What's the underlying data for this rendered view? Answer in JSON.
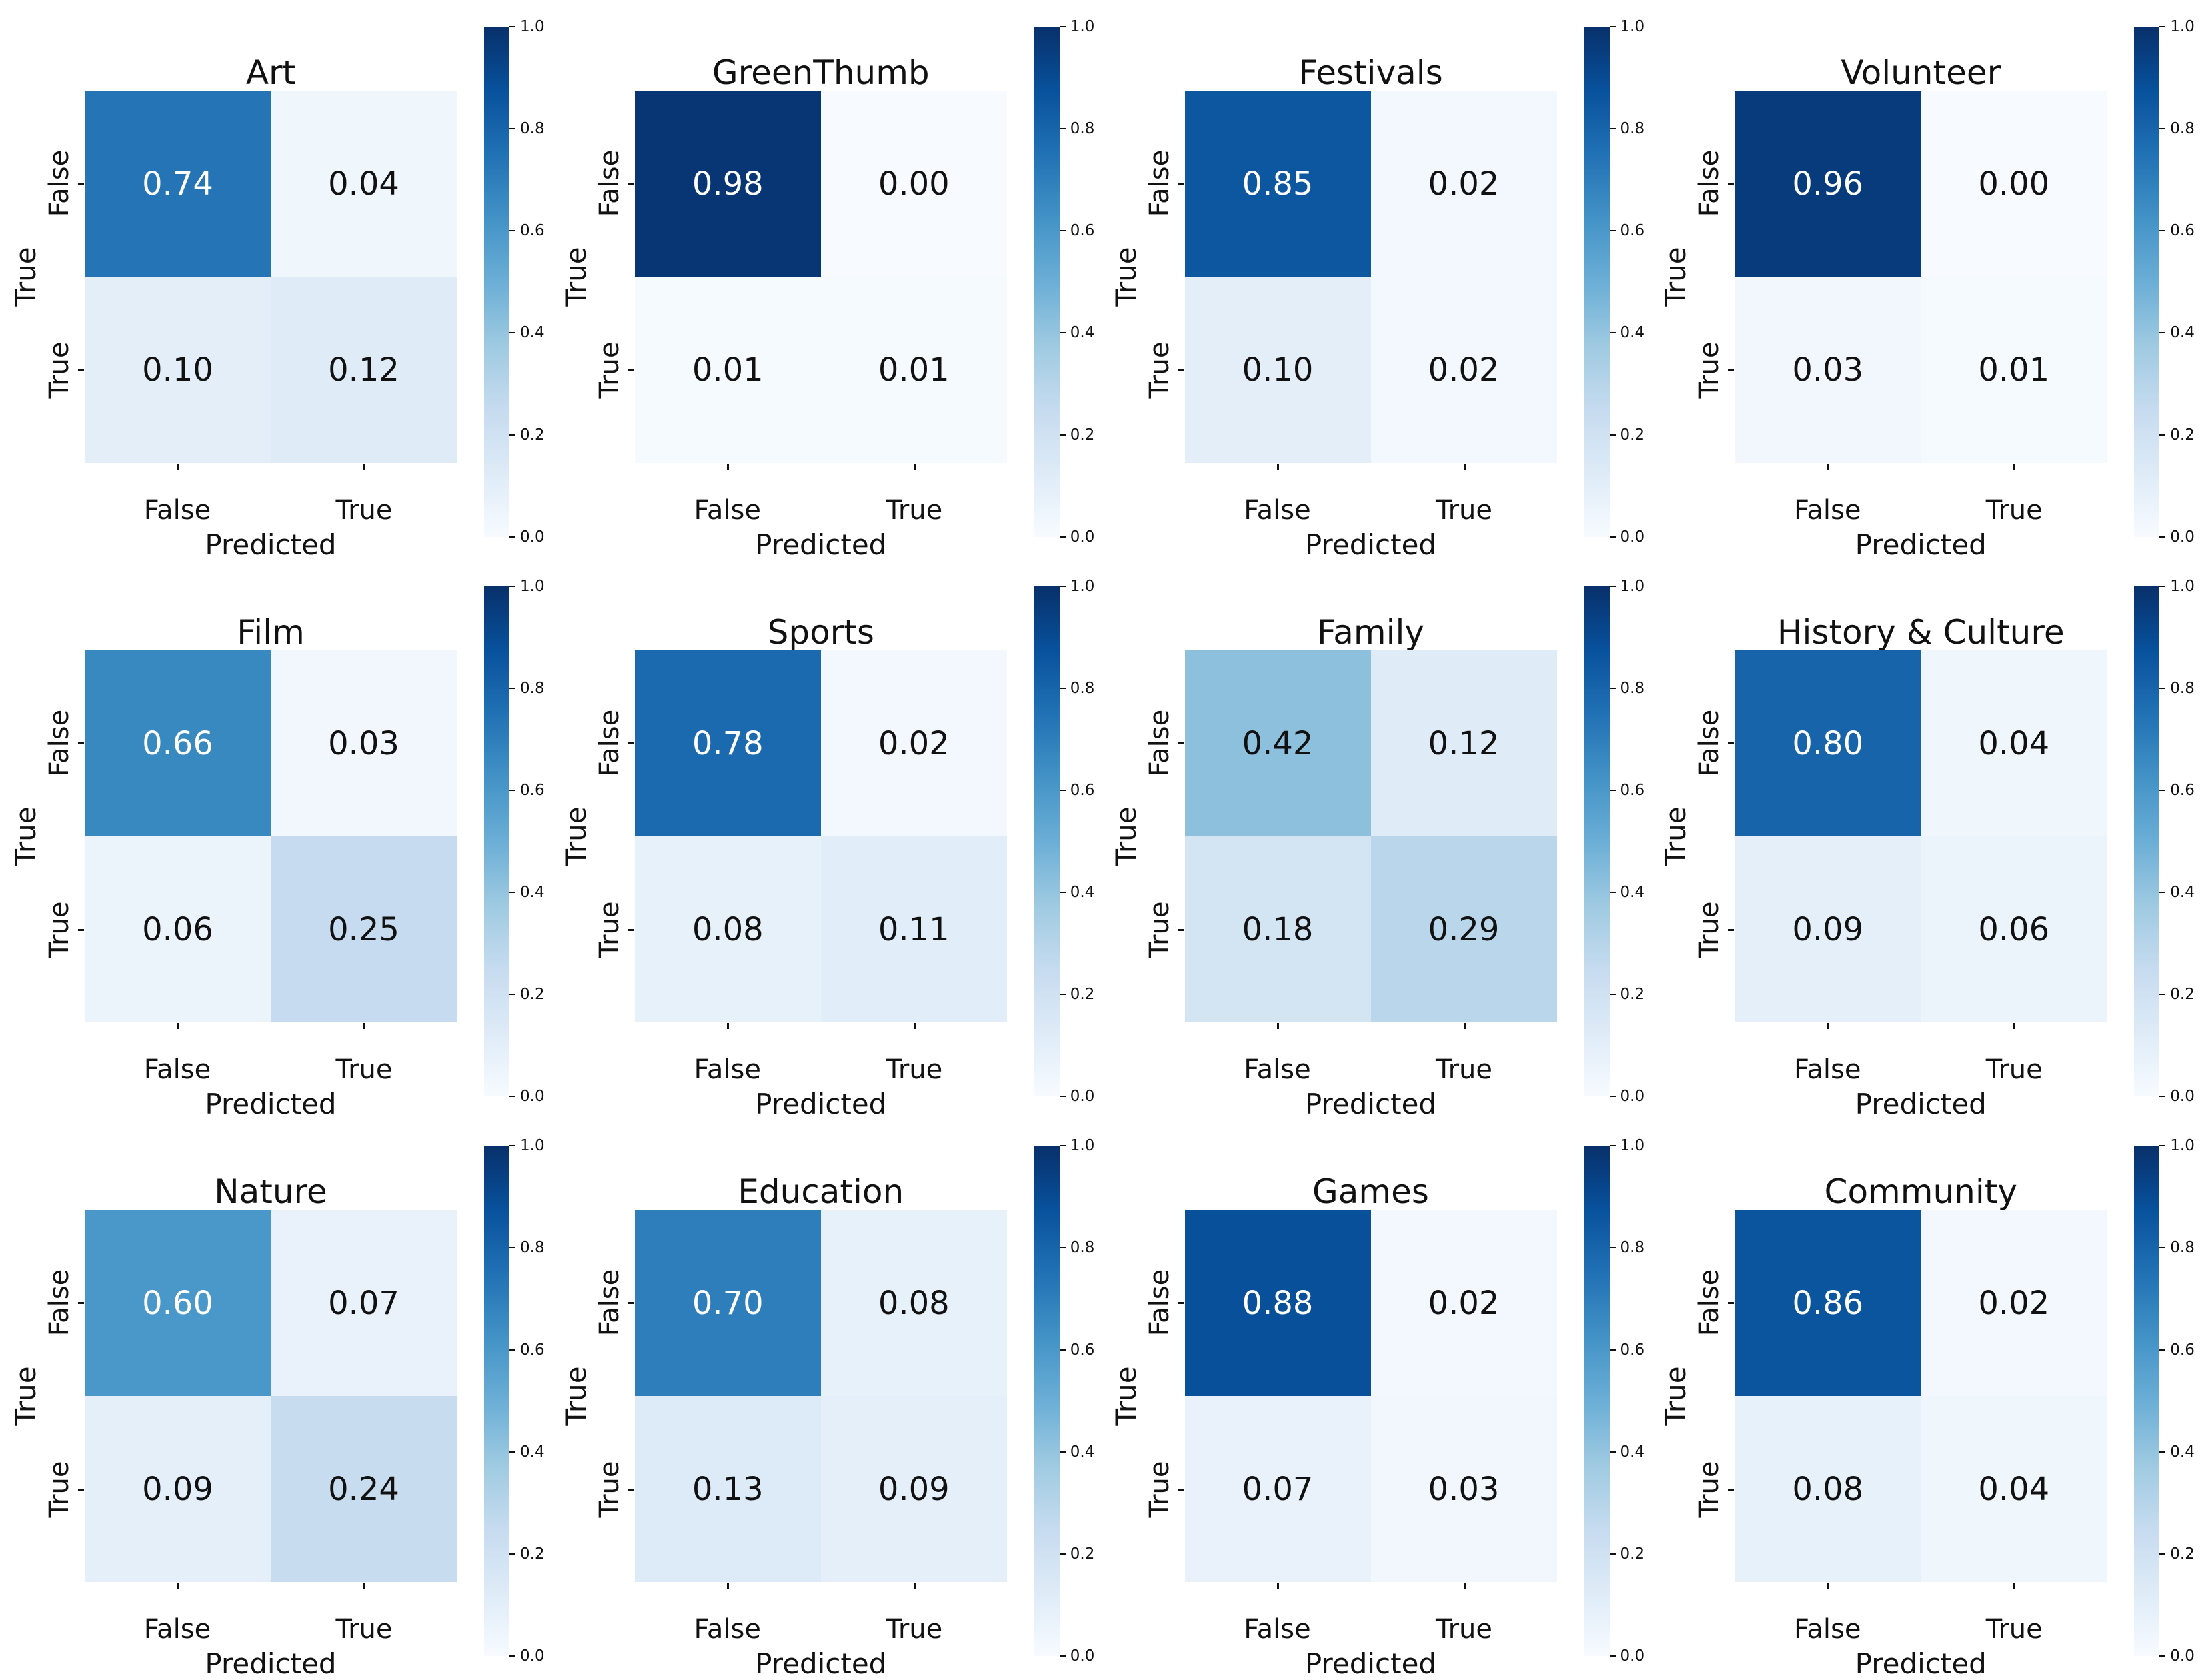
{
  "figure": {
    "background": "#ffffff",
    "text_color": "#111111",
    "colormap": "Blues",
    "colormap_anchors": [
      [
        0.0,
        "#f7fbff"
      ],
      [
        0.125,
        "#deebf7"
      ],
      [
        0.25,
        "#c6dbef"
      ],
      [
        0.375,
        "#9ecae1"
      ],
      [
        0.5,
        "#6baed6"
      ],
      [
        0.625,
        "#4292c6"
      ],
      [
        0.75,
        "#2171b5"
      ],
      [
        0.875,
        "#08519c"
      ],
      [
        1.0,
        "#08306b"
      ]
    ],
    "annotation_color_light": "#ffffff",
    "annotation_color_dark": "#111111",
    "colorbar_ticks": [
      "1.0",
      "0.8",
      "0.6",
      "0.4",
      "0.2",
      "0.0"
    ],
    "x_label": "Predicted",
    "y_label": "True",
    "x_tick_labels": [
      "False",
      "True"
    ],
    "y_tick_labels": [
      "False",
      "True"
    ]
  },
  "chart_data": [
    {
      "type": "heatmap",
      "title": "Art",
      "xlabel": "Predicted",
      "ylabel": "True",
      "x": [
        "False",
        "True"
      ],
      "y": [
        "False",
        "True"
      ],
      "vmin": 0,
      "vmax": 1,
      "grid": false,
      "legend_position": "right-colorbar",
      "values": [
        [
          0.74,
          0.04
        ],
        [
          0.1,
          0.12
        ]
      ],
      "labels": [
        [
          "0.74",
          "0.04"
        ],
        [
          "0.10",
          "0.12"
        ]
      ]
    },
    {
      "type": "heatmap",
      "title": "GreenThumb",
      "xlabel": "Predicted",
      "ylabel": "True",
      "x": [
        "False",
        "True"
      ],
      "y": [
        "False",
        "True"
      ],
      "vmin": 0,
      "vmax": 1,
      "grid": false,
      "legend_position": "right-colorbar",
      "values": [
        [
          0.98,
          0.0
        ],
        [
          0.01,
          0.01
        ]
      ],
      "labels": [
        [
          "0.98",
          "0.00"
        ],
        [
          "0.01",
          "0.01"
        ]
      ]
    },
    {
      "type": "heatmap",
      "title": "Festivals",
      "xlabel": "Predicted",
      "ylabel": "True",
      "x": [
        "False",
        "True"
      ],
      "y": [
        "False",
        "True"
      ],
      "vmin": 0,
      "vmax": 1,
      "grid": false,
      "legend_position": "right-colorbar",
      "values": [
        [
          0.85,
          0.02
        ],
        [
          0.1,
          0.02
        ]
      ],
      "labels": [
        [
          "0.85",
          "0.02"
        ],
        [
          "0.10",
          "0.02"
        ]
      ]
    },
    {
      "type": "heatmap",
      "title": "Volunteer",
      "xlabel": "Predicted",
      "ylabel": "True",
      "x": [
        "False",
        "True"
      ],
      "y": [
        "False",
        "True"
      ],
      "vmin": 0,
      "vmax": 1,
      "grid": false,
      "legend_position": "right-colorbar",
      "values": [
        [
          0.96,
          0.0
        ],
        [
          0.03,
          0.01
        ]
      ],
      "labels": [
        [
          "0.96",
          "0.00"
        ],
        [
          "0.03",
          "0.01"
        ]
      ]
    },
    {
      "type": "heatmap",
      "title": "Film",
      "xlabel": "Predicted",
      "ylabel": "True",
      "x": [
        "False",
        "True"
      ],
      "y": [
        "False",
        "True"
      ],
      "vmin": 0,
      "vmax": 1,
      "grid": false,
      "legend_position": "right-colorbar",
      "values": [
        [
          0.66,
          0.03
        ],
        [
          0.06,
          0.25
        ]
      ],
      "labels": [
        [
          "0.66",
          "0.03"
        ],
        [
          "0.06",
          "0.25"
        ]
      ]
    },
    {
      "type": "heatmap",
      "title": "Sports",
      "xlabel": "Predicted",
      "ylabel": "True",
      "x": [
        "False",
        "True"
      ],
      "y": [
        "False",
        "True"
      ],
      "vmin": 0,
      "vmax": 1,
      "grid": false,
      "legend_position": "right-colorbar",
      "values": [
        [
          0.78,
          0.02
        ],
        [
          0.08,
          0.11
        ]
      ],
      "labels": [
        [
          "0.78",
          "0.02"
        ],
        [
          "0.08",
          "0.11"
        ]
      ]
    },
    {
      "type": "heatmap",
      "title": "Family",
      "xlabel": "Predicted",
      "ylabel": "True",
      "x": [
        "False",
        "True"
      ],
      "y": [
        "False",
        "True"
      ],
      "vmin": 0,
      "vmax": 1,
      "grid": false,
      "legend_position": "right-colorbar",
      "values": [
        [
          0.42,
          0.12
        ],
        [
          0.18,
          0.29
        ]
      ],
      "labels": [
        [
          "0.42",
          "0.12"
        ],
        [
          "0.18",
          "0.29"
        ]
      ]
    },
    {
      "type": "heatmap",
      "title": "History & Culture",
      "xlabel": "Predicted",
      "ylabel": "True",
      "x": [
        "False",
        "True"
      ],
      "y": [
        "False",
        "True"
      ],
      "vmin": 0,
      "vmax": 1,
      "grid": false,
      "legend_position": "right-colorbar",
      "values": [
        [
          0.8,
          0.04
        ],
        [
          0.09,
          0.06
        ]
      ],
      "labels": [
        [
          "0.80",
          "0.04"
        ],
        [
          "0.09",
          "0.06"
        ]
      ]
    },
    {
      "type": "heatmap",
      "title": "Nature",
      "xlabel": "Predicted",
      "ylabel": "True",
      "x": [
        "False",
        "True"
      ],
      "y": [
        "False",
        "True"
      ],
      "vmin": 0,
      "vmax": 1,
      "grid": false,
      "legend_position": "right-colorbar",
      "values": [
        [
          0.6,
          0.07
        ],
        [
          0.09,
          0.24
        ]
      ],
      "labels": [
        [
          "0.60",
          "0.07"
        ],
        [
          "0.09",
          "0.24"
        ]
      ]
    },
    {
      "type": "heatmap",
      "title": "Education",
      "xlabel": "Predicted",
      "ylabel": "True",
      "x": [
        "False",
        "True"
      ],
      "y": [
        "False",
        "True"
      ],
      "vmin": 0,
      "vmax": 1,
      "grid": false,
      "legend_position": "right-colorbar",
      "values": [
        [
          0.7,
          0.08
        ],
        [
          0.13,
          0.09
        ]
      ],
      "labels": [
        [
          "0.70",
          "0.08"
        ],
        [
          "0.13",
          "0.09"
        ]
      ]
    },
    {
      "type": "heatmap",
      "title": "Games",
      "xlabel": "Predicted",
      "ylabel": "True",
      "x": [
        "False",
        "True"
      ],
      "y": [
        "False",
        "True"
      ],
      "vmin": 0,
      "vmax": 1,
      "grid": false,
      "legend_position": "right-colorbar",
      "values": [
        [
          0.88,
          0.02
        ],
        [
          0.07,
          0.03
        ]
      ],
      "labels": [
        [
          "0.88",
          "0.02"
        ],
        [
          "0.07",
          "0.03"
        ]
      ]
    },
    {
      "type": "heatmap",
      "title": "Community",
      "xlabel": "Predicted",
      "ylabel": "True",
      "x": [
        "False",
        "True"
      ],
      "y": [
        "False",
        "True"
      ],
      "vmin": 0,
      "vmax": 1,
      "grid": false,
      "legend_position": "right-colorbar",
      "values": [
        [
          0.86,
          0.02
        ],
        [
          0.08,
          0.04
        ]
      ],
      "labels": [
        [
          "0.86",
          "0.02"
        ],
        [
          "0.08",
          "0.04"
        ]
      ]
    }
  ]
}
